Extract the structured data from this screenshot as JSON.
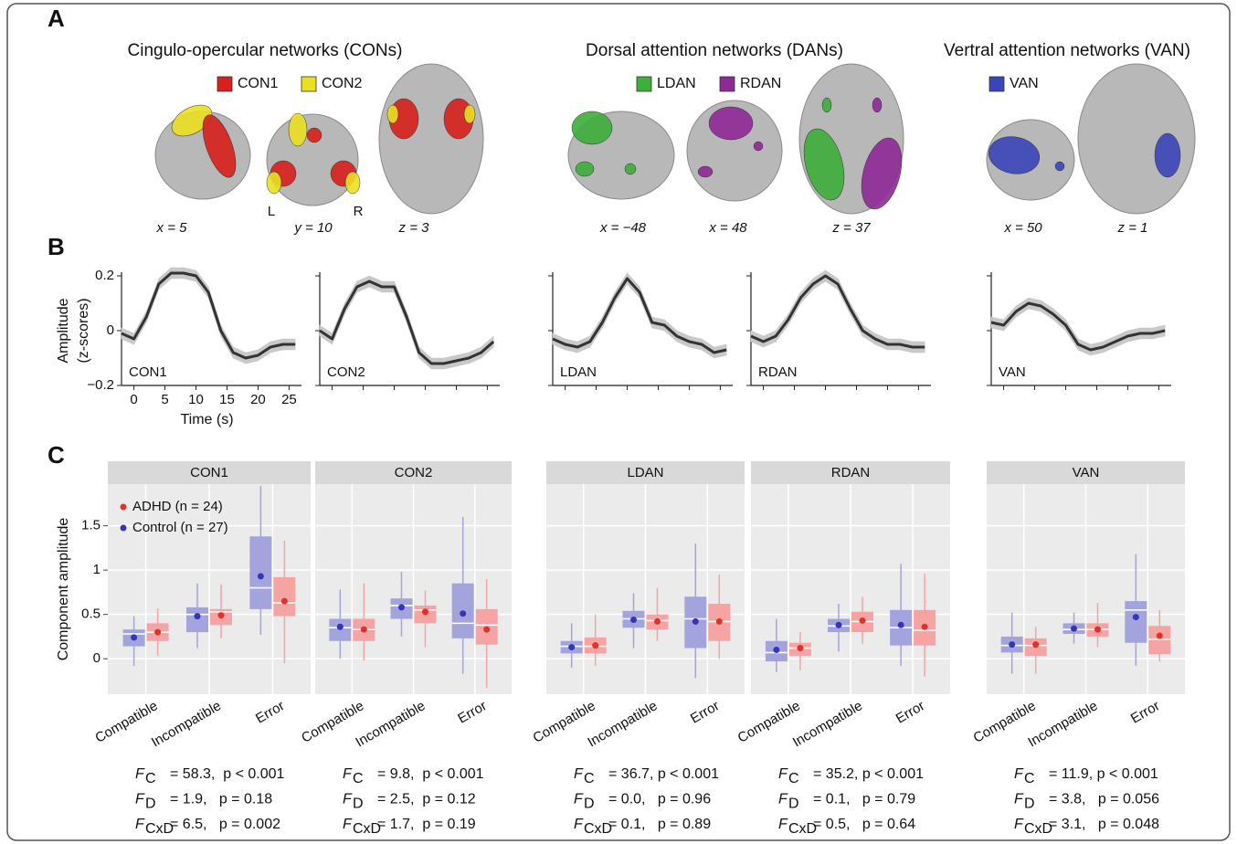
{
  "panel_labels": [
    "A",
    "B",
    "C"
  ],
  "panel_a": {
    "groups": [
      {
        "title": "Cingulo-opercular networks (CONs)",
        "legend": [
          {
            "name": "CON1",
            "color": "#d8201c"
          },
          {
            "name": "CON2",
            "color": "#ecdf22"
          }
        ],
        "slices": [
          "x = 5",
          "y = 10",
          "z = 3"
        ]
      },
      {
        "title": "Dorsal attention networks (DANs)",
        "legend": [
          {
            "name": "LDAN",
            "color": "#3fae3a"
          },
          {
            "name": "RDAN",
            "color": "#8e2a96"
          }
        ],
        "slices": [
          "x = −48",
          "x = 48",
          "z = 37"
        ]
      },
      {
        "title": "Vertral attention networks (VAN)",
        "legend": [
          {
            "name": "VAN",
            "color": "#3a45b8"
          }
        ],
        "slices": [
          "x = 50",
          "z = 1"
        ]
      }
    ],
    "orientation": [
      "L",
      "R"
    ]
  },
  "chart_data": [
    {
      "type": "line",
      "annotation": "CON1",
      "ylabel": [
        "Amplitude",
        "(z-scores)"
      ],
      "xlabel": "Time (s)",
      "tick_labels": true,
      "x": [
        -2,
        0,
        2,
        4,
        6,
        8,
        10,
        12,
        14,
        16,
        18,
        20,
        22,
        24,
        26
      ],
      "series": [
        {
          "color": "#333333",
          "band_color": "#c9c9c9",
          "values": [
            -0.01,
            -0.03,
            0.05,
            0.17,
            0.21,
            0.21,
            0.2,
            0.14,
            0.0,
            -0.08,
            -0.1,
            -0.09,
            -0.06,
            -0.05,
            -0.05
          ],
          "errors": [
            0.02,
            0.02,
            0.02,
            0.02,
            0.02,
            0.02,
            0.02,
            0.02,
            0.02,
            0.02,
            0.02,
            0.02,
            0.02,
            0.02,
            0.02
          ]
        }
      ],
      "xlim": [
        -2,
        27
      ],
      "ylim": [
        -0.2,
        0.2
      ],
      "xticks": [
        0,
        5,
        10,
        15,
        20,
        25
      ],
      "yticks": [
        {
          "value": -0.2,
          "label": "−0.2"
        },
        0,
        0.2
      ]
    },
    {
      "type": "line",
      "annotation": "CON2",
      "tick_labels": false,
      "x": [
        -2,
        0,
        2,
        4,
        6,
        8,
        10,
        12,
        14,
        16,
        18,
        20,
        22,
        24,
        26
      ],
      "series": [
        {
          "color": "#333333",
          "band_color": "#c9c9c9",
          "values": [
            0.0,
            -0.03,
            0.08,
            0.16,
            0.18,
            0.16,
            0.16,
            0.05,
            -0.08,
            -0.12,
            -0.12,
            -0.11,
            -0.1,
            -0.08,
            -0.04
          ],
          "errors": [
            0.02,
            0.02,
            0.02,
            0.02,
            0.02,
            0.02,
            0.02,
            0.02,
            0.02,
            0.02,
            0.02,
            0.02,
            0.02,
            0.02,
            0.02
          ]
        }
      ],
      "xlim": [
        -2,
        27
      ],
      "ylim": [
        -0.2,
        0.2
      ],
      "xticks": [
        0,
        5,
        10,
        15,
        20,
        25
      ],
      "yticks": [
        -0.2,
        0,
        0.2
      ]
    },
    {
      "type": "line",
      "annotation": "LDAN",
      "tick_labels": false,
      "x": [
        -2,
        0,
        2,
        4,
        6,
        8,
        10,
        12,
        14,
        16,
        18,
        20,
        22,
        24,
        26
      ],
      "series": [
        {
          "color": "#333333",
          "band_color": "#c9c9c9",
          "values": [
            -0.03,
            -0.05,
            -0.06,
            -0.04,
            0.03,
            0.12,
            0.19,
            0.14,
            0.03,
            0.02,
            -0.02,
            -0.04,
            -0.05,
            -0.08,
            -0.07
          ],
          "errors": [
            0.02,
            0.02,
            0.02,
            0.02,
            0.02,
            0.02,
            0.02,
            0.02,
            0.02,
            0.02,
            0.02,
            0.02,
            0.02,
            0.02,
            0.02
          ]
        }
      ],
      "xlim": [
        -2,
        27
      ],
      "ylim": [
        -0.2,
        0.2
      ],
      "xticks": [
        0,
        5,
        10,
        15,
        20,
        25
      ],
      "yticks": [
        -0.2,
        0,
        0.2
      ]
    },
    {
      "type": "line",
      "annotation": "RDAN",
      "tick_labels": false,
      "x": [
        -2,
        0,
        2,
        4,
        6,
        8,
        10,
        12,
        14,
        16,
        18,
        20,
        22,
        24,
        26
      ],
      "series": [
        {
          "color": "#333333",
          "band_color": "#c9c9c9",
          "values": [
            -0.02,
            -0.04,
            -0.02,
            0.04,
            0.12,
            0.17,
            0.2,
            0.17,
            0.08,
            0.0,
            -0.03,
            -0.05,
            -0.05,
            -0.06,
            -0.06
          ],
          "errors": [
            0.02,
            0.02,
            0.02,
            0.02,
            0.02,
            0.02,
            0.02,
            0.02,
            0.02,
            0.02,
            0.02,
            0.02,
            0.02,
            0.02,
            0.02
          ]
        }
      ],
      "xlim": [
        -2,
        27
      ],
      "ylim": [
        -0.2,
        0.2
      ],
      "xticks": [
        0,
        5,
        10,
        15,
        20,
        25
      ],
      "yticks": [
        -0.2,
        0,
        0.2
      ]
    },
    {
      "type": "line",
      "annotation": "VAN",
      "tick_labels": false,
      "x": [
        -2,
        0,
        2,
        4,
        6,
        8,
        10,
        12,
        14,
        16,
        18,
        20,
        22,
        24,
        26
      ],
      "series": [
        {
          "color": "#333333",
          "band_color": "#c9c9c9",
          "values": [
            0.03,
            0.02,
            0.07,
            0.1,
            0.09,
            0.06,
            0.02,
            -0.05,
            -0.07,
            -0.06,
            -0.04,
            -0.02,
            -0.01,
            -0.01,
            0.0
          ],
          "errors": [
            0.02,
            0.02,
            0.02,
            0.02,
            0.02,
            0.02,
            0.02,
            0.02,
            0.02,
            0.02,
            0.02,
            0.02,
            0.02,
            0.02,
            0.02
          ]
        }
      ],
      "xlim": [
        -2,
        27
      ],
      "ylim": [
        -0.2,
        0.2
      ],
      "xticks": [
        0,
        5,
        10,
        15,
        20,
        25
      ],
      "yticks": [
        -0.2,
        0,
        0.2
      ]
    },
    {
      "type": "box",
      "title": "CON1",
      "ylabel": "Component amplitude",
      "tick_labels": true,
      "legend": "top-left",
      "categories": [
        "Compatible",
        "Incompatible",
        "Error"
      ],
      "ylim": [
        -0.4,
        1.97
      ],
      "yticks": [
        0,
        0.5,
        1,
        1.5
      ],
      "series": [
        {
          "name": "ADHD (n = 24)",
          "color": "#f5a3a3",
          "point_color": "#e2302b",
          "low": [
            0.03,
            0.23,
            -0.05
          ],
          "q1": [
            0.2,
            0.38,
            0.48
          ],
          "median": [
            0.3,
            0.53,
            0.63
          ],
          "q3": [
            0.4,
            0.56,
            0.92
          ],
          "high": [
            0.57,
            0.84,
            1.33
          ],
          "mean": [
            0.3,
            0.49,
            0.65
          ]
        },
        {
          "name": "Control (n = 27)",
          "color": "#a3a3de",
          "point_color": "#3535b5",
          "low": [
            -0.08,
            0.12,
            0.27
          ],
          "q1": [
            0.14,
            0.3,
            0.56
          ],
          "median": [
            0.28,
            0.5,
            0.8
          ],
          "q3": [
            0.33,
            0.58,
            1.38
          ],
          "high": [
            0.48,
            0.85,
            1.95
          ],
          "mean": [
            0.24,
            0.48,
            0.93
          ]
        }
      ],
      "stats": [
        {
          "name": "F",
          "sub": "C",
          "text": "= 58.3,  p < 0.001"
        },
        {
          "name": "F",
          "sub": "D",
          "text": "= 1.9,   p = 0.18"
        },
        {
          "name": "F",
          "sub": "CxD",
          "text": "= 6.5,   p = 0.002"
        }
      ]
    },
    {
      "type": "box",
      "title": "CON2",
      "tick_labels": false,
      "categories": [
        "Compatible",
        "Incompatible",
        "Error"
      ],
      "ylim": [
        -0.4,
        1.97
      ],
      "yticks": [
        0,
        0.5,
        1,
        1.5
      ],
      "series": [
        {
          "color": "#f5a3a3",
          "point_color": "#e2302b",
          "low": [
            -0.02,
            0.13,
            -0.33
          ],
          "q1": [
            0.2,
            0.4,
            0.16
          ],
          "median": [
            0.33,
            0.55,
            0.38
          ],
          "q3": [
            0.45,
            0.6,
            0.56
          ],
          "high": [
            0.85,
            0.77,
            0.9
          ],
          "mean": [
            0.33,
            0.53,
            0.33
          ]
        },
        {
          "color": "#a3a3de",
          "point_color": "#3535b5",
          "low": [
            0.0,
            0.25,
            -0.17
          ],
          "q1": [
            0.2,
            0.45,
            0.23
          ],
          "median": [
            0.35,
            0.6,
            0.4
          ],
          "q3": [
            0.45,
            0.68,
            0.85
          ],
          "high": [
            0.78,
            0.98,
            1.6
          ],
          "mean": [
            0.36,
            0.58,
            0.51
          ]
        }
      ],
      "stats": [
        {
          "name": "F",
          "sub": "C",
          "text": "= 9.8,  p < 0.001"
        },
        {
          "name": "F",
          "sub": "D",
          "text": "= 2.5,  p = 0.12"
        },
        {
          "name": "F",
          "sub": "CxD",
          "text": "= 1.7,  p = 0.19"
        }
      ]
    },
    {
      "type": "box",
      "title": "LDAN",
      "tick_labels": false,
      "categories": [
        "Compatible",
        "Incompatible",
        "Error"
      ],
      "ylim": [
        -0.4,
        1.97
      ],
      "yticks": [
        0,
        0.5,
        1,
        1.5
      ],
      "series": [
        {
          "color": "#f5a3a3",
          "point_color": "#e2302b",
          "low": [
            -0.08,
            0.2,
            0.0
          ],
          "q1": [
            0.06,
            0.33,
            0.2
          ],
          "median": [
            0.14,
            0.43,
            0.42
          ],
          "q3": [
            0.24,
            0.5,
            0.62
          ],
          "high": [
            0.5,
            0.8,
            0.95
          ],
          "mean": [
            0.15,
            0.42,
            0.42
          ]
        },
        {
          "color": "#a3a3de",
          "point_color": "#3535b5",
          "low": [
            -0.1,
            0.12,
            -0.22
          ],
          "q1": [
            0.06,
            0.35,
            0.12
          ],
          "median": [
            0.14,
            0.45,
            0.45
          ],
          "q3": [
            0.2,
            0.54,
            0.7
          ],
          "high": [
            0.4,
            0.74,
            1.3
          ],
          "mean": [
            0.13,
            0.44,
            0.42
          ]
        }
      ],
      "stats": [
        {
          "name": "F",
          "sub": "C",
          "text": "= 36.7, p < 0.001"
        },
        {
          "name": "F",
          "sub": "D",
          "text": "= 0.0,   p = 0.96"
        },
        {
          "name": "F",
          "sub": "CxD",
          "text": "= 0.1,   p = 0.89"
        }
      ]
    },
    {
      "type": "box",
      "title": "RDAN",
      "tick_labels": false,
      "categories": [
        "Compatible",
        "Incompatible",
        "Error"
      ],
      "ylim": [
        -0.4,
        1.97
      ],
      "yticks": [
        0,
        0.5,
        1,
        1.5
      ],
      "series": [
        {
          "color": "#f5a3a3",
          "point_color": "#e2302b",
          "low": [
            -0.13,
            0.17,
            -0.2
          ],
          "q1": [
            0.03,
            0.3,
            0.15
          ],
          "median": [
            0.12,
            0.42,
            0.32
          ],
          "q3": [
            0.18,
            0.53,
            0.55
          ],
          "high": [
            0.3,
            0.7,
            0.96
          ],
          "mean": [
            0.12,
            0.43,
            0.36
          ]
        },
        {
          "color": "#a3a3de",
          "point_color": "#3535b5",
          "low": [
            -0.15,
            0.08,
            -0.08
          ],
          "q1": [
            -0.03,
            0.3,
            0.15
          ],
          "median": [
            0.07,
            0.37,
            0.35
          ],
          "q3": [
            0.2,
            0.45,
            0.55
          ],
          "high": [
            0.45,
            0.62,
            1.07
          ],
          "mean": [
            0.1,
            0.38,
            0.38
          ]
        }
      ],
      "stats": [
        {
          "name": "F",
          "sub": "C",
          "text": "= 35.2, p < 0.001"
        },
        {
          "name": "F",
          "sub": "D",
          "text": "= 0.1,   p = 0.79"
        },
        {
          "name": "F",
          "sub": "CxD",
          "text": "= 0.5,   p = 0.64"
        }
      ]
    },
    {
      "type": "box",
      "title": "VAN",
      "tick_labels": false,
      "categories": [
        "Compatible",
        "Incompatible",
        "Error"
      ],
      "ylim": [
        -0.4,
        1.97
      ],
      "yticks": [
        0,
        0.5,
        1,
        1.5
      ],
      "series": [
        {
          "color": "#f5a3a3",
          "point_color": "#e2302b",
          "low": [
            -0.17,
            0.13,
            -0.03
          ],
          "q1": [
            0.03,
            0.25,
            0.05
          ],
          "median": [
            0.15,
            0.33,
            0.22
          ],
          "q3": [
            0.23,
            0.4,
            0.37
          ],
          "high": [
            0.36,
            0.63,
            0.55
          ],
          "mean": [
            0.16,
            0.33,
            0.26
          ]
        },
        {
          "color": "#a3a3de",
          "point_color": "#3535b5",
          "low": [
            -0.17,
            0.17,
            -0.08
          ],
          "q1": [
            0.07,
            0.28,
            0.18
          ],
          "median": [
            0.15,
            0.33,
            0.55
          ],
          "q3": [
            0.25,
            0.4,
            0.65
          ],
          "high": [
            0.52,
            0.52,
            1.18
          ],
          "mean": [
            0.16,
            0.34,
            0.47
          ]
        }
      ],
      "stats": [
        {
          "name": "F",
          "sub": "C",
          "text": "= 11.9, p < 0.001"
        },
        {
          "name": "F",
          "sub": "D",
          "text": "= 3.8,   p = 0.056"
        },
        {
          "name": "F",
          "sub": "CxD",
          "text": "= 3.1,   p = 0.048"
        }
      ]
    }
  ]
}
